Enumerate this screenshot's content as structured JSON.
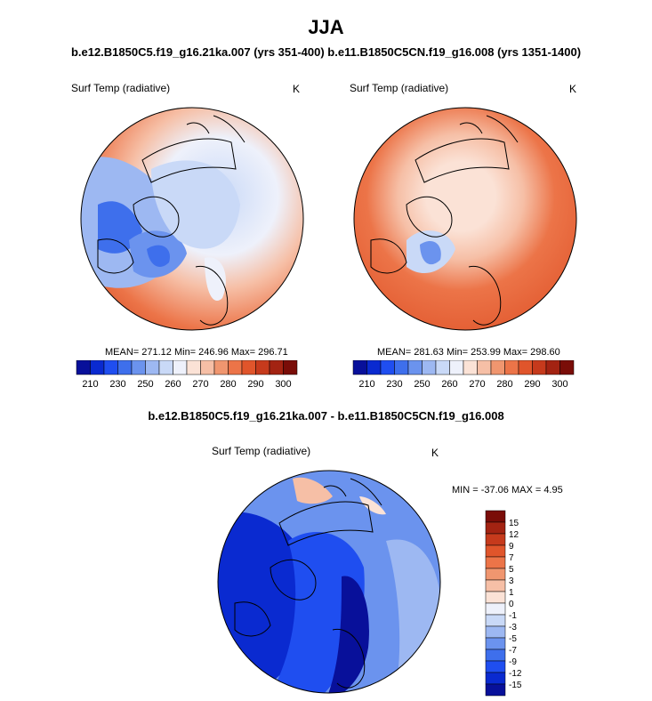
{
  "title": "JJA",
  "subtitle": "b.e12.B1850C5.f19_g16.21ka.007 (yrs 351-400) b.e11.B1850C5CN.f19_g16.008 (yrs 1351-1400)",
  "diff_title": "b.e12.B1850C5.f19_g16.21ka.007 - b.e11.B1850C5CN.f19_g16.008",
  "panels": [
    {
      "variable": "Surf Temp (radiative)",
      "units": "K",
      "stats": "MEAN= 271.12  Min= 246.96  Max= 296.71"
    },
    {
      "variable": "Surf Temp (radiative)",
      "units": "K",
      "stats": "MEAN= 281.63  Min= 253.99  Max= 298.60"
    },
    {
      "variable": "Surf Temp (radiative)",
      "units": "K",
      "stats": "MIN = -37.06 MAX =   4.95"
    }
  ],
  "abs_colorbar": {
    "colors": [
      "#08109a",
      "#0a2ad0",
      "#1f4ef0",
      "#3e6fec",
      "#6b93ee",
      "#9db8f2",
      "#c9d9f7",
      "#eef1fb",
      "#fbe2d6",
      "#f6bfa6",
      "#f0966f",
      "#ec7448",
      "#e0552b",
      "#c63a1c",
      "#a32312",
      "#7a0d08"
    ],
    "labels": [
      "210",
      "230",
      "250",
      "260",
      "270",
      "280",
      "290",
      "300"
    ]
  },
  "diff_colorbar": {
    "colors": [
      "#08109a",
      "#0a2ad0",
      "#1f4ef0",
      "#3e6fec",
      "#6b93ee",
      "#9db8f2",
      "#c9d9f7",
      "#eef1fb",
      "#fbe2d6",
      "#f6bfa6",
      "#f0966f",
      "#ec7448",
      "#e0552b",
      "#c63a1c",
      "#a32312",
      "#7a0d08"
    ],
    "labels": [
      "15",
      "12",
      "9",
      "7",
      "5",
      "3",
      "1",
      "0",
      "-1",
      "-3",
      "-5",
      "-7",
      "-9",
      "-12",
      "-15"
    ]
  }
}
